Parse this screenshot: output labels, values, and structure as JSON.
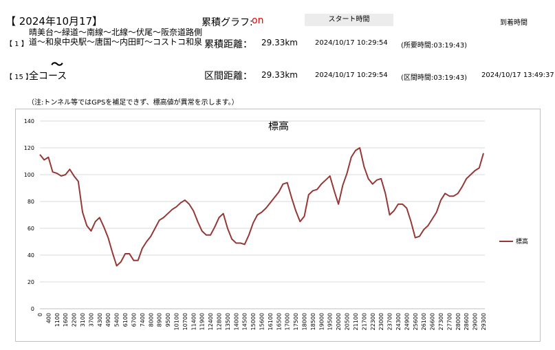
{
  "header": {
    "date": "【 2024年10月17】",
    "graph_label": "累積グラフ:",
    "graph_state": "on",
    "start_header": "スタート時間",
    "end_header": "到着時間"
  },
  "rows": [
    {
      "index": "【 1 】",
      "route": "晴美台～緑道～南線～北線～伏尾～阪奈道路側道～和泉中央駅～唐国～内田町～コストコ和泉",
      "mark": "〜",
      "distance_label": "累積距離：",
      "distance": "29.33km",
      "start": "2024/10/17 10:29:54",
      "duration": "(所要時間:03:19:43)"
    },
    {
      "index": "【 15 】",
      "route": "全コース",
      "distance_label": "区間距離：",
      "distance": "29.33km",
      "start": "2024/10/17 10:29:54",
      "duration": "(区間時間:03:19:43)",
      "end": "2024/10/17 13:49:37"
    }
  ],
  "note": "（注:トンネル等ではGPSを補足できず、標高値が異常を示します。）",
  "chart_data": {
    "type": "line",
    "title": "標高",
    "categories": [
      0,
      null,
      400,
      null,
      1100,
      null,
      1600,
      null,
      2200,
      null,
      3100,
      null,
      3700,
      null,
      4300,
      null,
      4900,
      null,
      5400,
      null,
      6100,
      null,
      6700,
      null,
      7400,
      null,
      8000,
      null,
      8900,
      null,
      9500,
      null,
      10100,
      null,
      10700,
      null,
      11400,
      null,
      11900,
      null,
      12400,
      null,
      12800,
      null,
      13500,
      null,
      14000,
      null,
      14500,
      null,
      15000,
      null,
      15600,
      null,
      16100,
      null,
      16500,
      null,
      17000,
      null,
      17500,
      null,
      18000,
      null,
      18500,
      null,
      19000,
      null,
      19500,
      null,
      20000,
      null,
      20500,
      null,
      21100,
      null,
      21700,
      null,
      22300,
      null,
      23000,
      null,
      23700,
      null,
      24300,
      null,
      24900,
      null,
      25600,
      null,
      26100,
      null,
      26600,
      null,
      27300,
      null,
      27700,
      null,
      28000,
      null,
      28600,
      null,
      29000,
      null,
      29300
    ],
    "series": [
      {
        "name": "標高",
        "color": "#953735",
        "values": [
          115,
          111,
          113,
          102,
          101,
          99,
          100,
          104,
          99,
          95,
          72,
          62,
          58,
          65,
          68,
          61,
          53,
          42,
          32,
          35,
          41,
          41,
          36,
          36,
          45,
          50,
          54,
          60,
          66,
          68,
          71,
          74,
          76,
          79,
          81,
          78,
          73,
          65,
          58,
          55,
          55,
          61,
          68,
          71,
          60,
          52,
          49,
          49,
          48,
          55,
          64,
          70,
          72,
          75,
          79,
          83,
          87,
          93,
          94,
          83,
          73,
          65,
          69,
          85,
          88,
          89,
          93,
          96,
          99,
          88,
          78,
          92,
          101,
          113,
          118,
          120,
          106,
          97,
          93,
          96,
          97,
          86,
          70,
          73,
          78,
          78,
          75,
          65,
          53,
          54,
          59,
          62,
          67,
          72,
          81,
          86,
          84,
          84,
          86,
          91,
          97,
          100,
          103,
          105,
          116
        ]
      }
    ],
    "ylim": [
      0,
      140
    ],
    "yticks": [
      0,
      20,
      40,
      60,
      80,
      100,
      120,
      140
    ],
    "grid": true,
    "legend": "right"
  }
}
